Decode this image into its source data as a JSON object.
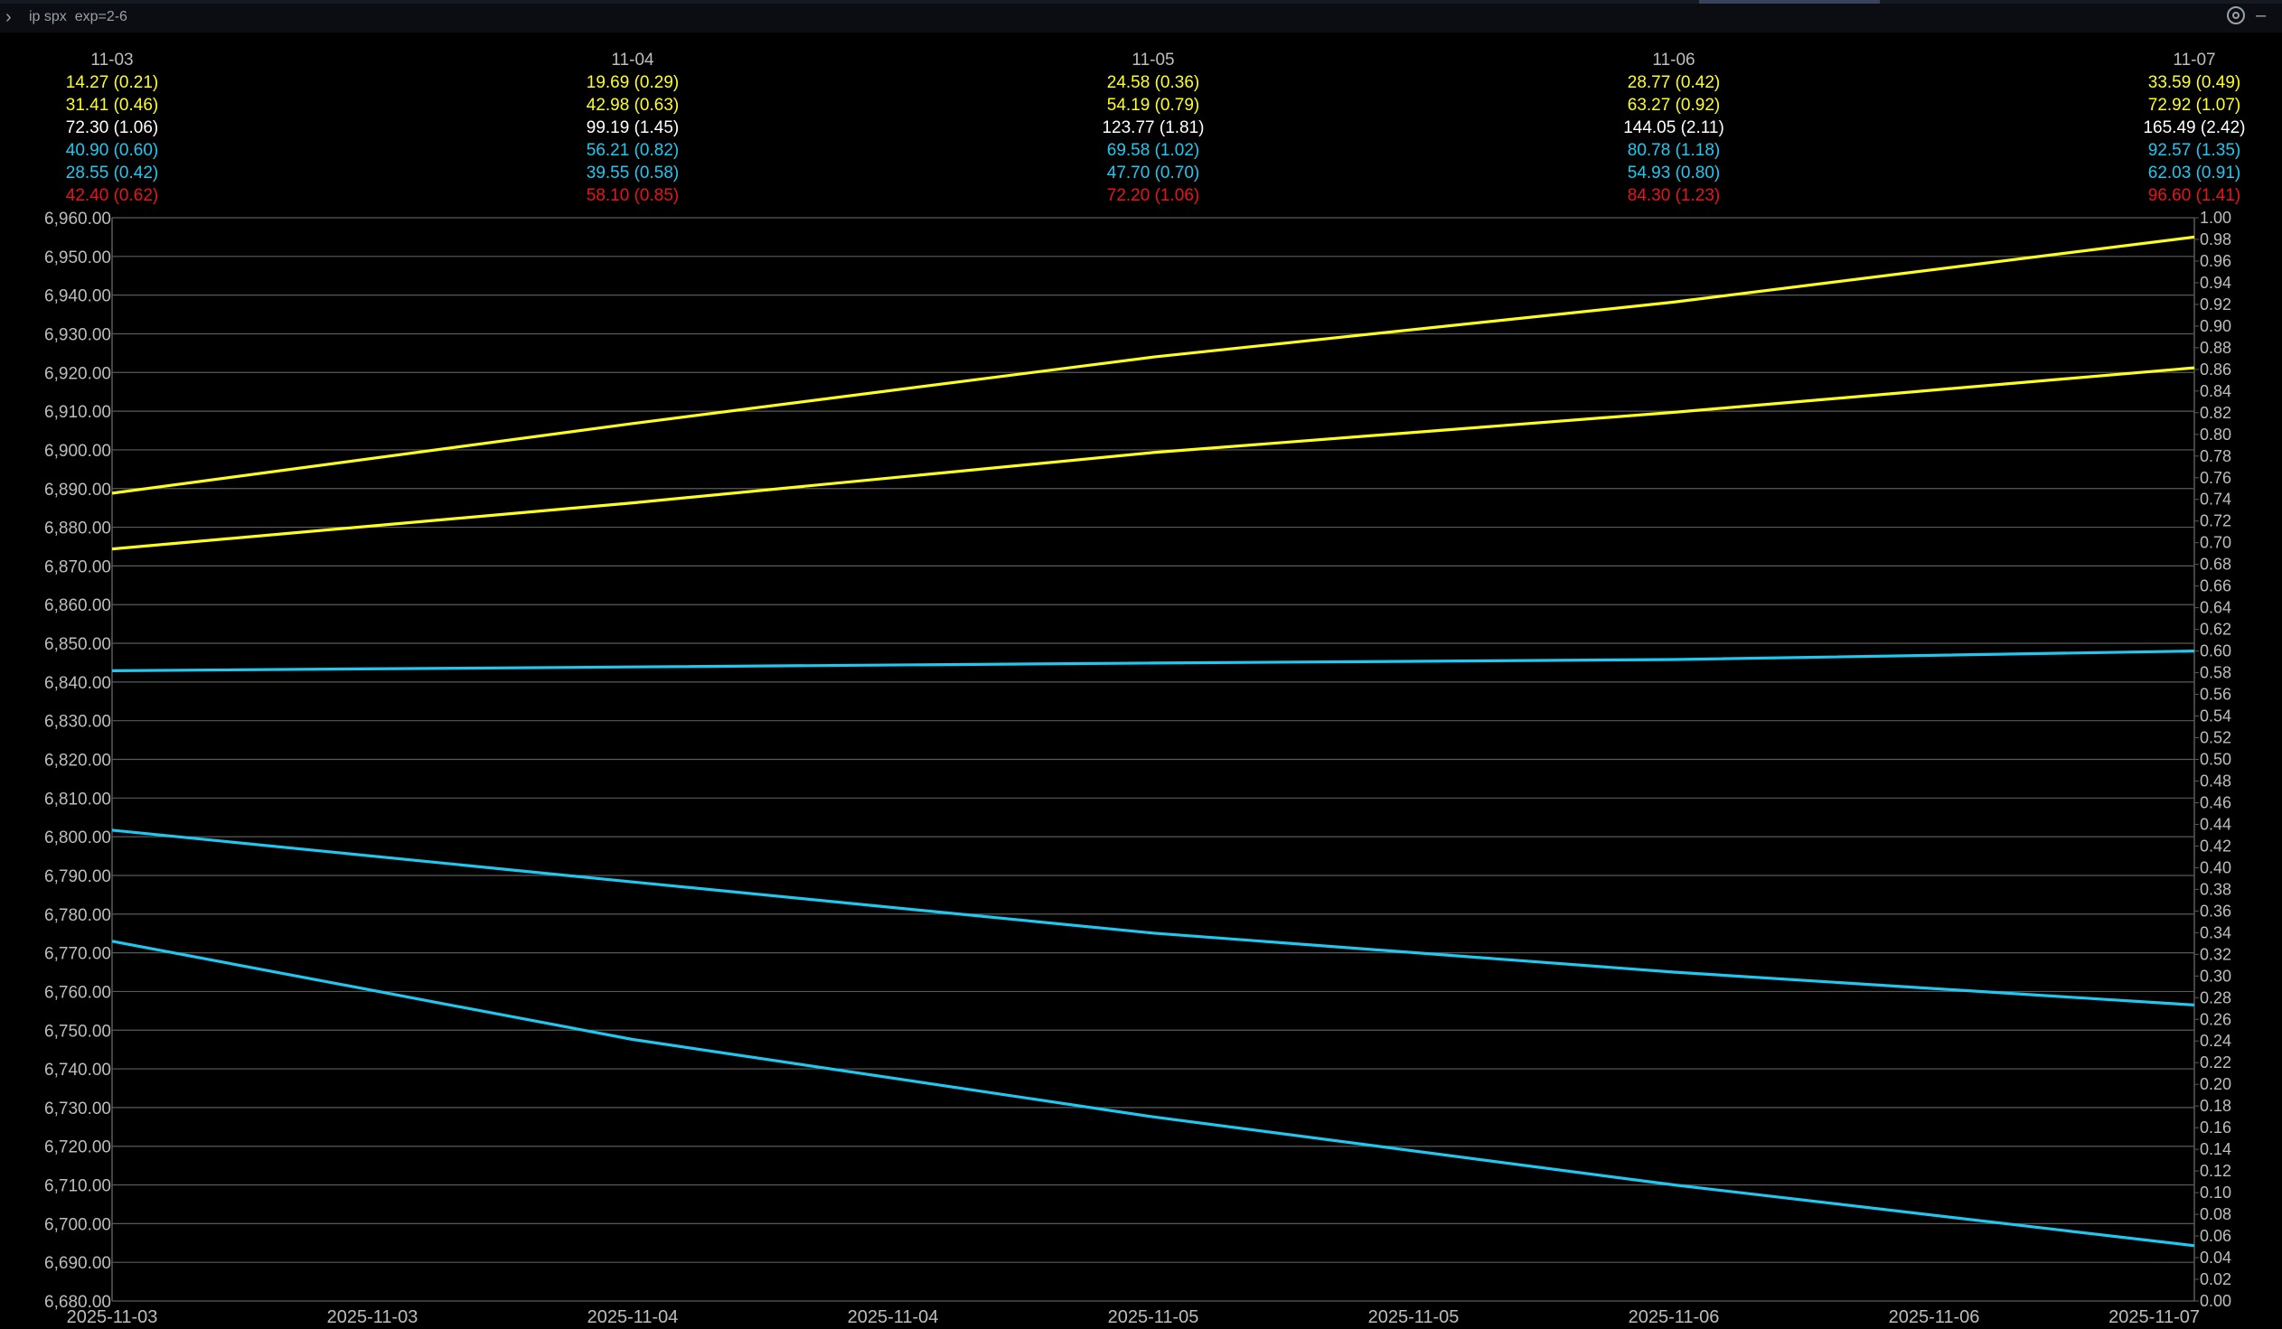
{
  "topbar": {
    "command": "ip spx  exp=2-6",
    "prompt_icon": "chevron-right-icon",
    "settings_icon": "gear-icon",
    "minimize_icon": "minus-icon"
  },
  "colors": {
    "background": "#000000",
    "grid": "#5a5a5a",
    "axis_text": "#bdbdbd",
    "yellow": "#ffff1e",
    "white": "#ffffff",
    "cyan": "#1fc8f0",
    "red": "#e8141e"
  },
  "chart_data": {
    "type": "line",
    "title": "",
    "xlabel": "",
    "ylabel": "",
    "x_tick_labels": [
      "2025-11-03",
      "2025-11-03",
      "2025-11-04",
      "2025-11-04",
      "2025-11-05",
      "2025-11-05",
      "2025-11-06",
      "2025-11-06",
      "2025-11-07"
    ],
    "ylim_left": [
      6680,
      6960
    ],
    "yticks_left": [
      "6,960.00",
      "6,950.00",
      "6,940.00",
      "6,930.00",
      "6,920.00",
      "6,910.00",
      "6,900.00",
      "6,890.00",
      "6,880.00",
      "6,870.00",
      "6,860.00",
      "6,850.00",
      "6,840.00",
      "6,830.00",
      "6,820.00",
      "6,810.00",
      "6,800.00",
      "6,790.00",
      "6,780.00",
      "6,770.00",
      "6,760.00",
      "6,750.00",
      "6,740.00",
      "6,730.00",
      "6,720.00",
      "6,710.00",
      "6,700.00",
      "6,690.00",
      "6,680.00"
    ],
    "ylim_right": [
      0,
      1
    ],
    "yticks_right": [
      "1.00",
      "0.98",
      "0.96",
      "0.94",
      "0.92",
      "0.90",
      "0.88",
      "0.86",
      "0.84",
      "0.82",
      "0.80",
      "0.78",
      "0.76",
      "0.74",
      "0.72",
      "0.70",
      "0.68",
      "0.66",
      "0.64",
      "0.62",
      "0.60",
      "0.58",
      "0.56",
      "0.54",
      "0.52",
      "0.50",
      "0.48",
      "0.46",
      "0.44",
      "0.42",
      "0.40",
      "0.38",
      "0.36",
      "0.34",
      "0.32",
      "0.30",
      "0.28",
      "0.26",
      "0.24",
      "0.22",
      "0.20",
      "0.18",
      "0.16",
      "0.14",
      "0.12",
      "0.10",
      "0.08",
      "0.06",
      "0.04",
      "0.02",
      "0.00"
    ],
    "grid": true,
    "legend": "none",
    "x": [
      0,
      1,
      2,
      3,
      4
    ],
    "series": [
      {
        "color": "#ffff1e",
        "values": [
          6888.8,
          6906.8,
          6924.0,
          6938.2,
          6955.0
        ]
      },
      {
        "color": "#ffff1e",
        "values": [
          6874.4,
          6886.3,
          6899.3,
          6909.7,
          6921.2
        ]
      },
      {
        "color": "#1fc8f0",
        "values": [
          6842.9,
          6843.9,
          6844.9,
          6845.8,
          6848.0
        ]
      },
      {
        "color": "#1fc8f0",
        "values": [
          6801.7,
          6788.3,
          6775.1,
          6765.0,
          6756.5
        ]
      },
      {
        "color": "#1fc8f0",
        "values": [
          6773.0,
          6747.6,
          6727.6,
          6710.0,
          6694.3
        ]
      }
    ],
    "columns": [
      {
        "date": "11-03",
        "rows": [
          "14.27 (0.21)",
          "31.41 (0.46)",
          "72.30 (1.06)",
          "40.90 (0.60)",
          "28.55 (0.42)",
          "42.40 (0.62)"
        ]
      },
      {
        "date": "11-04",
        "rows": [
          "19.69 (0.29)",
          "42.98 (0.63)",
          "99.19 (1.45)",
          "56.21 (0.82)",
          "39.55 (0.58)",
          "58.10 (0.85)"
        ]
      },
      {
        "date": "11-05",
        "rows": [
          "24.58 (0.36)",
          "54.19 (0.79)",
          "123.77 (1.81)",
          "69.58 (1.02)",
          "47.70 (0.70)",
          "72.20 (1.06)"
        ]
      },
      {
        "date": "11-06",
        "rows": [
          "28.77 (0.42)",
          "63.27 (0.92)",
          "144.05 (2.11)",
          "80.78 (1.18)",
          "54.93 (0.80)",
          "84.30 (1.23)"
        ]
      },
      {
        "date": "11-07",
        "rows": [
          "33.59 (0.49)",
          "72.92 (1.07)",
          "165.49 (2.42)",
          "92.57 (1.35)",
          "62.03 (0.91)",
          "96.60 (1.41)"
        ]
      }
    ],
    "row_colors": [
      "#ffff1e",
      "#ffff1e",
      "#ffffff",
      "#1fc8f0",
      "#1fc8f0",
      "#e8141e"
    ]
  }
}
